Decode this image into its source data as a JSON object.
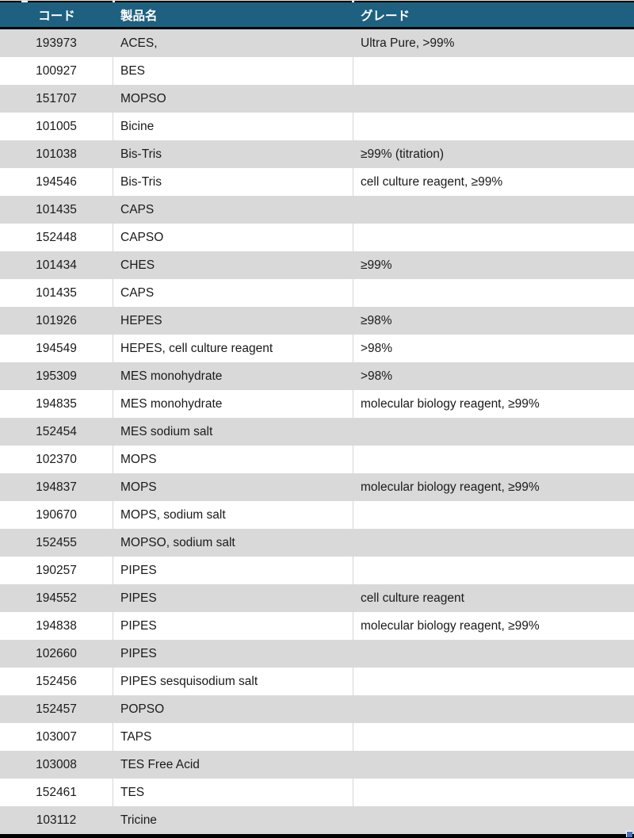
{
  "table": {
    "headers": {
      "code": "コード",
      "name": "製品名",
      "grade": "グレード"
    },
    "rows": [
      {
        "code": "193973",
        "name": "ACES,",
        "grade": "Ultra Pure, >99%"
      },
      {
        "code": "100927",
        "name": "BES",
        "grade": ""
      },
      {
        "code": "151707",
        "name": "MOPSO",
        "grade": ""
      },
      {
        "code": "101005",
        "name": "Bicine",
        "grade": ""
      },
      {
        "code": "101038",
        "name": "Bis-Tris",
        "grade": "≥99% (titration)"
      },
      {
        "code": "194546",
        "name": "Bis-Tris",
        "grade": "cell culture reagent, ≥99%"
      },
      {
        "code": "101435",
        "name": "CAPS",
        "grade": ""
      },
      {
        "code": "152448",
        "name": "CAPSO",
        "grade": ""
      },
      {
        "code": "101434",
        "name": "CHES",
        "grade": "≥99%"
      },
      {
        "code": "101435",
        "name": "CAPS",
        "grade": ""
      },
      {
        "code": "101926",
        "name": "HEPES",
        "grade": "≥98%"
      },
      {
        "code": "194549",
        "name": "HEPES, cell culture reagent",
        "grade": ">98%"
      },
      {
        "code": "195309",
        "name": "MES monohydrate",
        "grade": ">98%"
      },
      {
        "code": "194835",
        "name": "MES monohydrate",
        "grade": "molecular biology reagent, ≥99%"
      },
      {
        "code": "152454",
        "name": "MES sodium salt",
        "grade": ""
      },
      {
        "code": "102370",
        "name": "MOPS",
        "grade": ""
      },
      {
        "code": "194837",
        "name": "MOPS",
        "grade": "molecular biology reagent, ≥99%"
      },
      {
        "code": "190670",
        "name": "MOPS, sodium salt",
        "grade": ""
      },
      {
        "code": "152455",
        "name": "MOPSO, sodium salt",
        "grade": ""
      },
      {
        "code": "190257",
        "name": "PIPES",
        "grade": ""
      },
      {
        "code": "194552",
        "name": "PIPES",
        "grade": "cell culture reagent"
      },
      {
        "code": "194838",
        "name": "PIPES",
        "grade": "molecular biology reagent, ≥99%"
      },
      {
        "code": "102660",
        "name": "PIPES",
        "grade": ""
      },
      {
        "code": "152456",
        "name": "PIPES sesquisodium salt",
        "grade": ""
      },
      {
        "code": "152457",
        "name": "POPSO",
        "grade": ""
      },
      {
        "code": "103007",
        "name": "TAPS",
        "grade": ""
      },
      {
        "code": "103008",
        "name": "TES Free Acid",
        "grade": ""
      },
      {
        "code": "152461",
        "name": "TES",
        "grade": ""
      },
      {
        "code": "103112",
        "name": "Tricine",
        "grade": ""
      }
    ],
    "colors": {
      "header_bg": "#1E6080",
      "header_text": "#FFFFFF",
      "stripe_bg": "#D9D9D9",
      "row_bg": "#FFFFFF",
      "border_black": "#000000",
      "divider": "#D6D6D6",
      "text": "#1A1A1A",
      "fill_handle": "#4472C4"
    }
  }
}
